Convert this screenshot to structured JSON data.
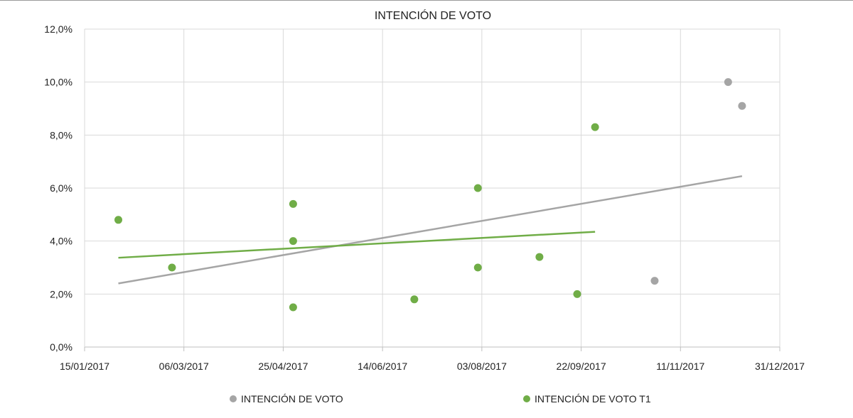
{
  "chart_data": {
    "type": "scatter",
    "title": "INTENCIÓN DE VOTO",
    "xlabel": "",
    "ylabel": "",
    "x_axis": {
      "type": "date",
      "min": "2017-01-15",
      "max": "2017-12-31",
      "ticks": [
        "2017-01-15",
        "2017-03-06",
        "2017-04-25",
        "2017-06-14",
        "2017-08-03",
        "2017-09-22",
        "2017-11-11",
        "2017-12-31"
      ],
      "tick_labels": [
        "15/01/2017",
        "06/03/2017",
        "25/04/2017",
        "14/06/2017",
        "03/08/2017",
        "22/09/2017",
        "11/11/2017",
        "31/12/2017"
      ]
    },
    "y_axis": {
      "min": 0,
      "max": 12,
      "ticks": [
        0,
        2,
        4,
        6,
        8,
        10,
        12
      ],
      "tick_labels": [
        "0,0%",
        "2,0%",
        "4,0%",
        "6,0%",
        "8,0%",
        "10,0%",
        "12,0%"
      ]
    },
    "grid": true,
    "legend_position": "bottom",
    "series": [
      {
        "name": "INTENCIÓN DE VOTO",
        "color": "#a5a5a5",
        "points": [
          {
            "x": "2017-10-29",
            "y": 2.5
          },
          {
            "x": "2017-12-05",
            "y": 10.0
          },
          {
            "x": "2017-12-12",
            "y": 9.1
          }
        ],
        "trendline": {
          "from": {
            "x": "2017-02-01",
            "y": 2.4
          },
          "to": {
            "x": "2017-12-12",
            "y": 6.45
          }
        }
      },
      {
        "name": "INTENCIÓN DE VOTO T1",
        "color": "#70ad47",
        "points": [
          {
            "x": "2017-02-01",
            "y": 4.8
          },
          {
            "x": "2017-02-28",
            "y": 3.0
          },
          {
            "x": "2017-04-30",
            "y": 5.4
          },
          {
            "x": "2017-04-30",
            "y": 4.0
          },
          {
            "x": "2017-04-30",
            "y": 1.5
          },
          {
            "x": "2017-06-30",
            "y": 1.8
          },
          {
            "x": "2017-08-01",
            "y": 6.0
          },
          {
            "x": "2017-08-01",
            "y": 3.0
          },
          {
            "x": "2017-09-01",
            "y": 3.4
          },
          {
            "x": "2017-09-20",
            "y": 2.0
          },
          {
            "x": "2017-09-29",
            "y": 8.3
          }
        ],
        "trendline": {
          "from": {
            "x": "2017-02-01",
            "y": 3.37
          },
          "to": {
            "x": "2017-09-29",
            "y": 4.35
          }
        }
      }
    ]
  }
}
